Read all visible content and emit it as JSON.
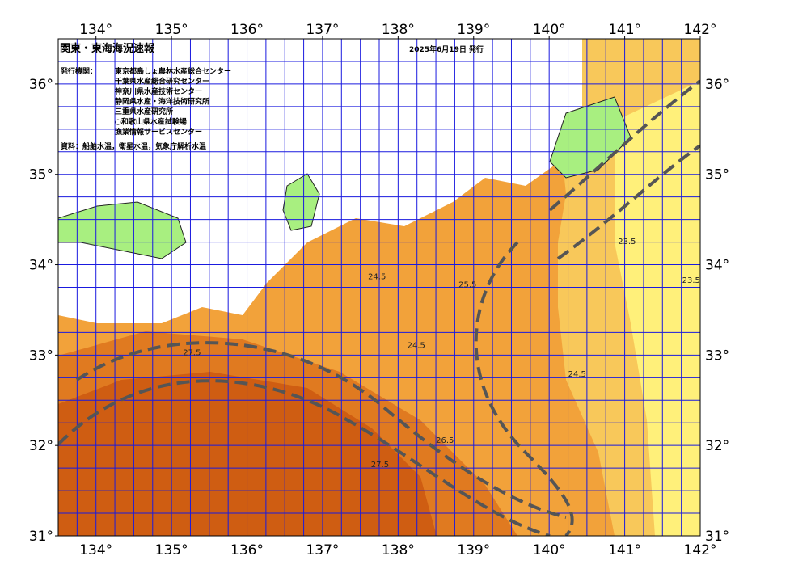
{
  "map": {
    "title": "関東・東海海況速報",
    "issued": "2025年6月19日 発行",
    "publisher_label": "発行機関：",
    "publishers": [
      "東京都島しょ農林水産総合センター",
      "千葉県水産総合研究センター",
      "神奈川県水産技術センター",
      "静岡県水産・海洋技術研究所",
      "三重県水産研究所",
      "○和歌山県水産試験場",
      "漁業情報サービスセンター"
    ],
    "source": "資料：船舶水温，衛星水温，気象庁解析水温",
    "xlim": [
      133.5,
      142
    ],
    "ylim": [
      31,
      36.5
    ],
    "xticks": [
      {
        "value": 134,
        "label": "134°"
      },
      {
        "value": 135,
        "label": "135°"
      },
      {
        "value": 136,
        "label": "136°"
      },
      {
        "value": 137,
        "label": "137°"
      },
      {
        "value": 138,
        "label": "138°"
      },
      {
        "value": 139,
        "label": "139°"
      },
      {
        "value": 140,
        "label": "140°"
      },
      {
        "value": 141,
        "label": "141°"
      },
      {
        "value": 142,
        "label": "142°"
      }
    ],
    "yticks": [
      {
        "value": 31,
        "label": "31°"
      },
      {
        "value": 32,
        "label": "32°"
      },
      {
        "value": 33,
        "label": "33°"
      },
      {
        "value": 34,
        "label": "34°"
      },
      {
        "value": 35,
        "label": "35°"
      },
      {
        "value": 36,
        "label": "36°"
      }
    ],
    "contour_labels": [
      {
        "text": "24.5",
        "lon": 137.72,
        "lat": 33.84
      },
      {
        "text": "23.5",
        "lon": 141.03,
        "lat": 34.23
      },
      {
        "text": "24.5",
        "lon": 140.37,
        "lat": 32.76
      },
      {
        "text": "27.5",
        "lon": 137.76,
        "lat": 31.76
      },
      {
        "text": "25.5",
        "lon": 138.92,
        "lat": 33.75
      },
      {
        "text": "23.5",
        "lon": 141.88,
        "lat": 33.8
      },
      {
        "text": "27.5",
        "lon": 135.27,
        "lat": 33.0
      },
      {
        "text": "26.5",
        "lon": 138.62,
        "lat": 32.03
      },
      {
        "text": "24.5",
        "lon": 138.24,
        "lat": 33.08
      }
    ]
  }
}
